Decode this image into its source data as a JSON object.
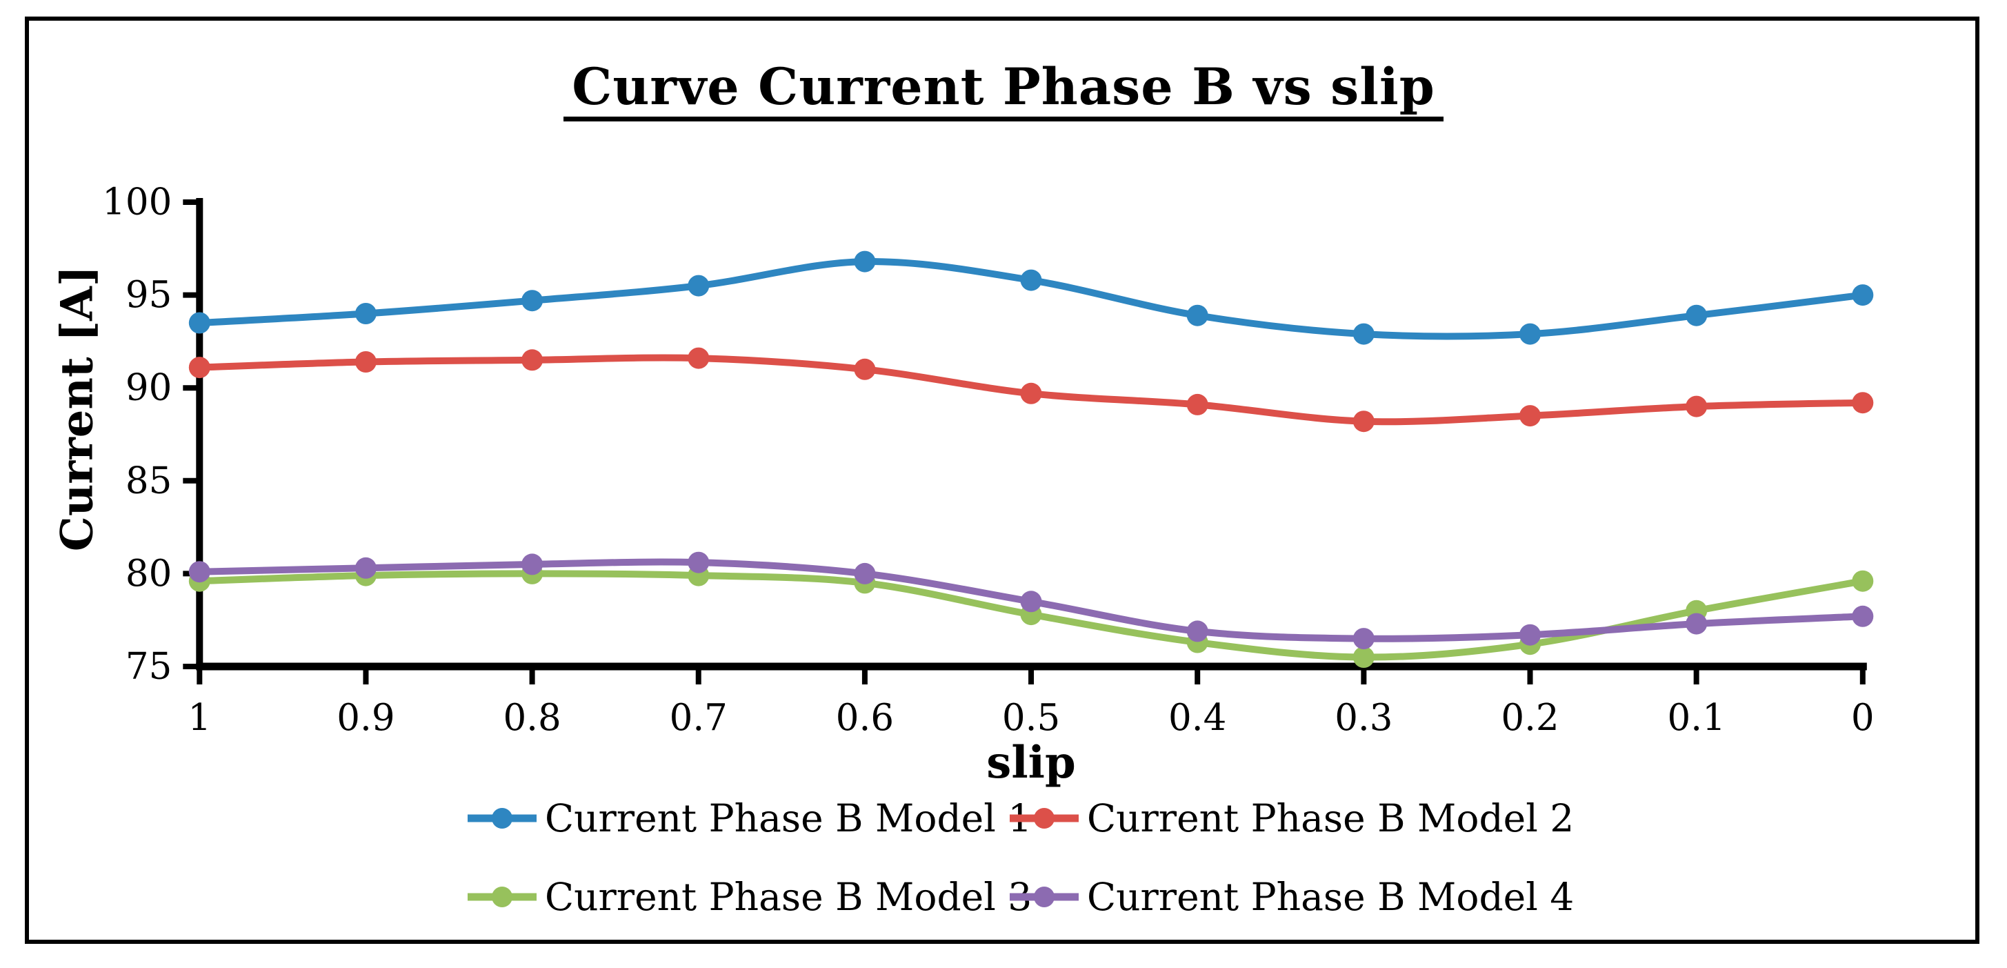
{
  "figure": {
    "background": "#FFFFFF",
    "border_color": "#000000"
  },
  "chart_data": {
    "type": "line",
    "title": "Curve Current Phase B vs slip",
    "xlabel": "slip",
    "ylabel": "Current [A]",
    "line_style": "smooth",
    "marker": "circle",
    "grid": false,
    "legend_position": "bottom",
    "axis_color": "#000000",
    "x_axis_reversed": true,
    "xlim": [
      1,
      0
    ],
    "ylim": [
      75,
      100
    ],
    "x": [
      1,
      0.9,
      0.8,
      0.7,
      0.6,
      0.5,
      0.4,
      0.3,
      0.2,
      0.1,
      0
    ],
    "x_tick_labels": [
      "1",
      "0.9",
      "0.8",
      "0.7",
      "0.6",
      "0.5",
      "0.4",
      "0.3",
      "0.2",
      "0.1",
      "0"
    ],
    "y_ticks": [
      100,
      95,
      90,
      85,
      80,
      75
    ],
    "y_tick_labels": [
      "100",
      "95",
      "90",
      "85",
      "80",
      "75"
    ],
    "series": [
      {
        "name": "Current Phase B Model 1",
        "color": "#2E86C1",
        "values": [
          93.5,
          94.0,
          94.7,
          95.5,
          96.8,
          95.8,
          93.9,
          92.9,
          92.9,
          93.9,
          95.0
        ]
      },
      {
        "name": "Current Phase B Model 2",
        "color": "#DC5049",
        "values": [
          91.1,
          91.4,
          91.5,
          91.6,
          91.0,
          89.7,
          89.1,
          88.2,
          88.5,
          89.0,
          89.2
        ]
      },
      {
        "name": "Current Phase B Model 3",
        "color": "#97C15C",
        "values": [
          79.6,
          79.9,
          80.0,
          79.9,
          79.5,
          77.8,
          76.3,
          75.5,
          76.2,
          78.0,
          79.6
        ]
      },
      {
        "name": "Current Phase B Model 4",
        "color": "#8C6BB1",
        "values": [
          80.1,
          80.3,
          80.5,
          80.6,
          80.0,
          78.5,
          76.9,
          76.5,
          76.7,
          77.3,
          77.7
        ]
      }
    ]
  }
}
